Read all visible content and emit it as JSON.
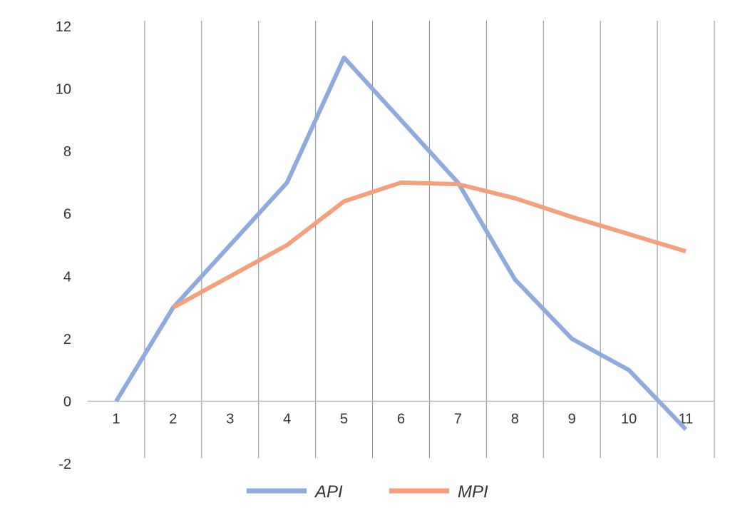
{
  "chart_data": {
    "type": "line",
    "title": "",
    "xlabel": "",
    "ylabel": "",
    "categories": [
      "1",
      "2",
      "3",
      "4",
      "5",
      "6",
      "7",
      "8",
      "9",
      "10",
      "11"
    ],
    "ylim": [
      -2,
      12
    ],
    "yticks": [
      "12",
      "10",
      "8",
      "6",
      "4",
      "2",
      "0",
      "-2"
    ],
    "grid": "vertical",
    "legend": "bottom",
    "series": [
      {
        "name": "API",
        "color": "#8faadc",
        "values": [
          0,
          3,
          5,
          7,
          11,
          9,
          7,
          3.9,
          2,
          1,
          -0.9
        ]
      },
      {
        "name": "MPI",
        "color": "#f4a07c",
        "values": [
          null,
          3,
          4,
          5,
          6.4,
          7,
          6.95,
          6.5,
          5.9,
          5.35,
          4.8
        ]
      }
    ]
  }
}
